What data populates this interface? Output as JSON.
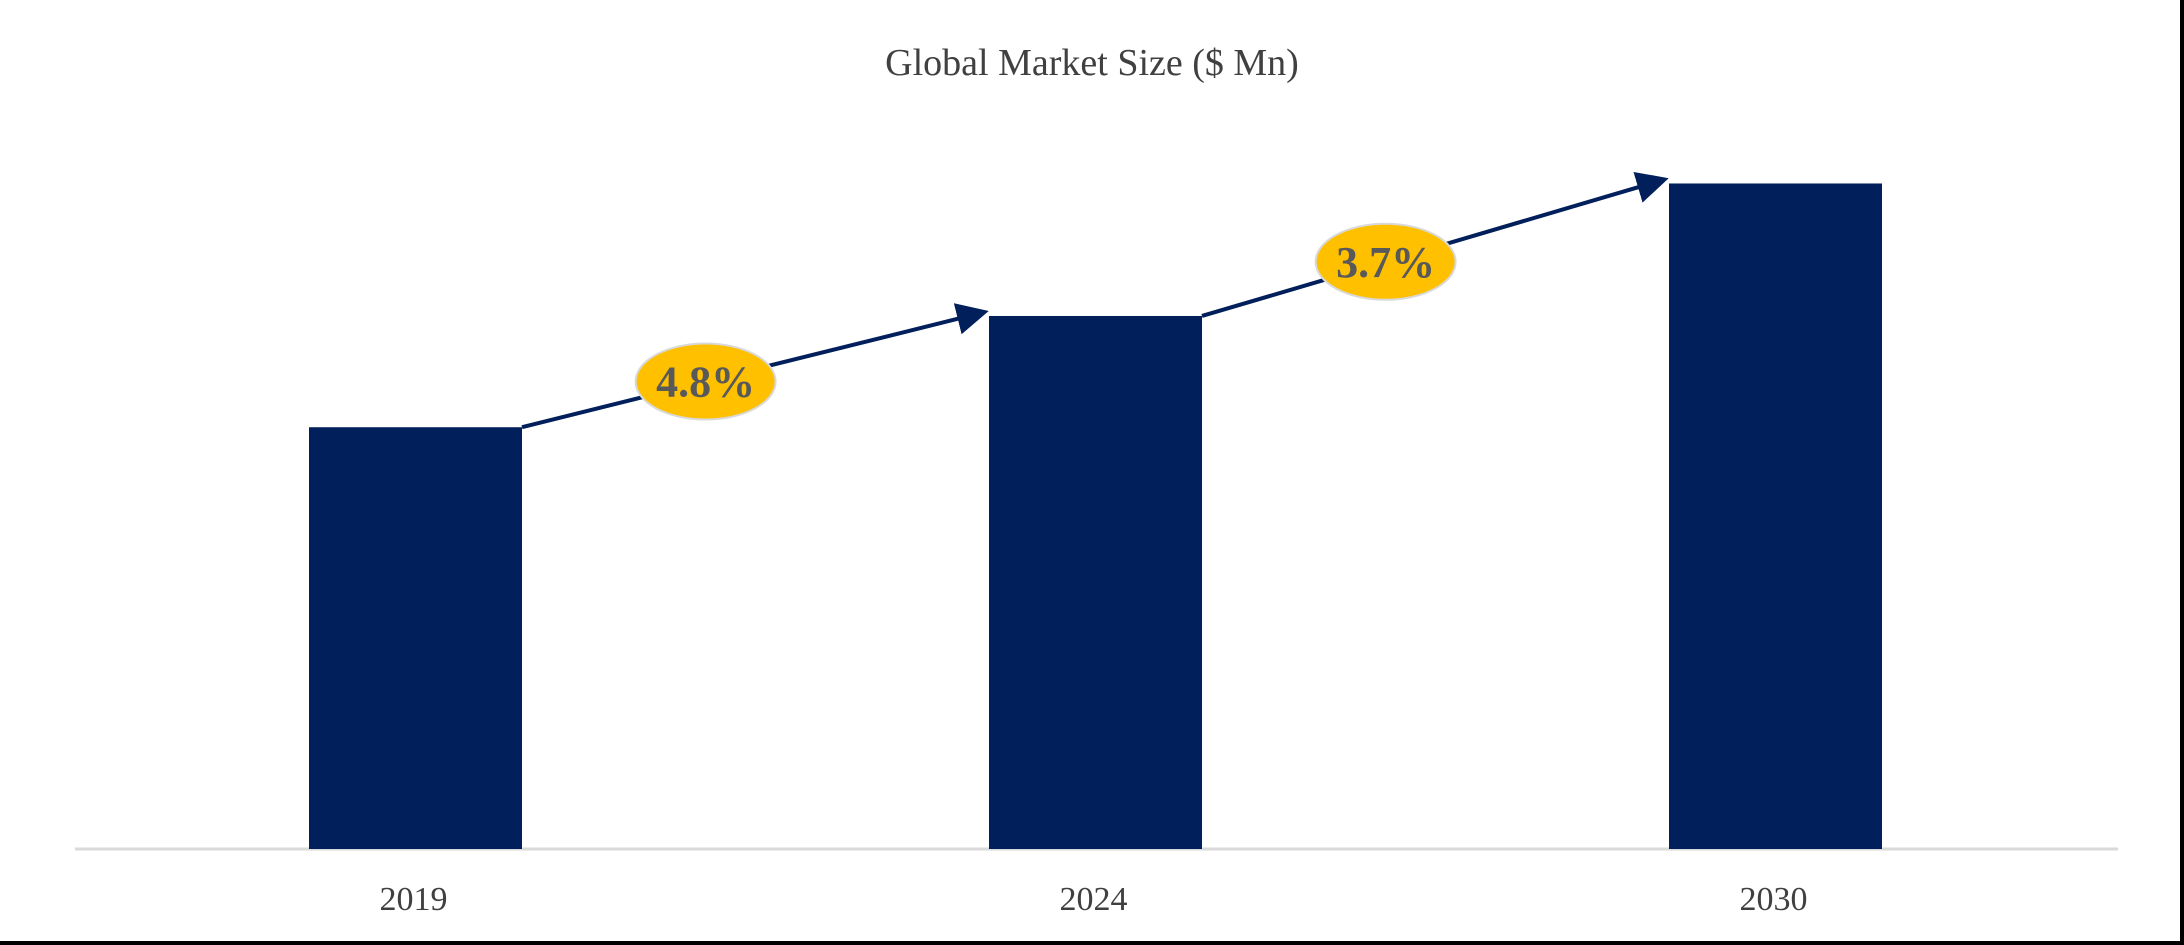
{
  "chart_data": {
    "type": "bar",
    "title": "Global Market Size ($ Mn)",
    "xlabel": "",
    "ylabel": "",
    "categories": [
      "2019",
      "2024",
      "2030"
    ],
    "values": [
      417,
      527,
      658
    ],
    "ylim": [
      0,
      700
    ],
    "grid": false,
    "legend": "none",
    "annotations": [
      {
        "from": "2019",
        "to": "2024",
        "label": "4.8%"
      },
      {
        "from": "2024",
        "to": "2030",
        "label": "3.7%"
      }
    ],
    "colors": {
      "bar": "#001f5b",
      "badge": "#ffc000",
      "badge_text": "#595959",
      "arrow": "#001f5b",
      "axis": "#d9d9d9"
    }
  }
}
